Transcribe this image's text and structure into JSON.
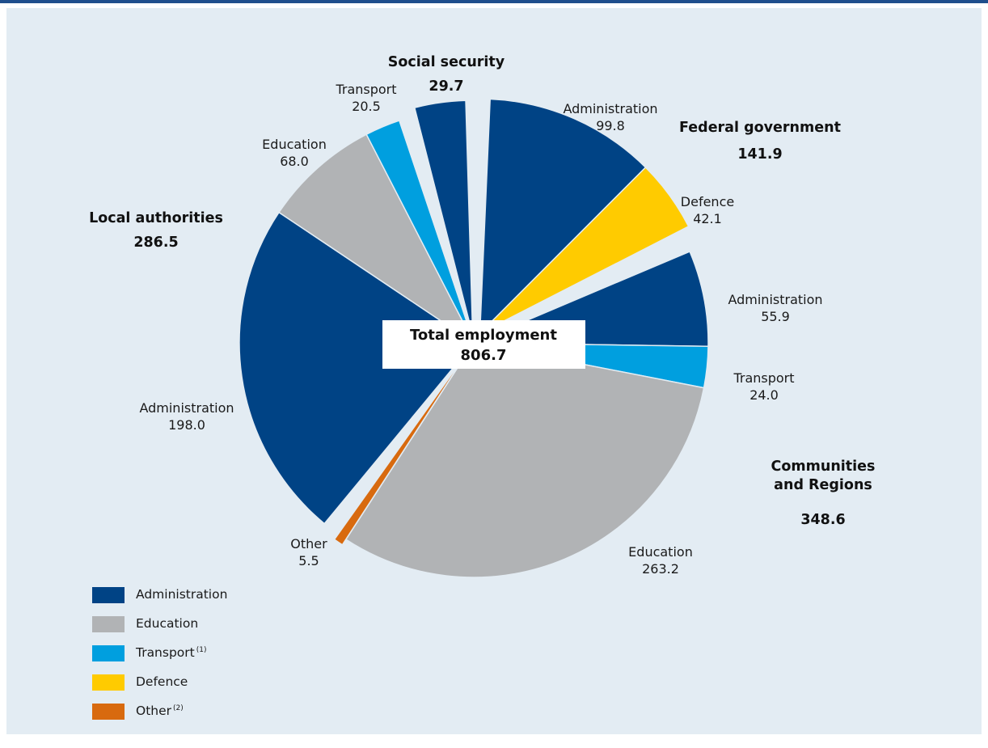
{
  "colors": {
    "background": "#e3ecf3",
    "top_rule": "#1f4e8c",
    "Administration": "#004385",
    "Education": "#b1b3b5",
    "Transport": "#009fdf",
    "Defence": "#ffcb00",
    "Other": "#d86a0f",
    "center_box": "#ffffff"
  },
  "chart_data": {
    "type": "pie",
    "total": {
      "label": "Total employment",
      "value": "806.7"
    },
    "groups": [
      {
        "name": "Federal government",
        "value": "141.9",
        "slices": [
          {
            "category": "Administration",
            "value": 99.8,
            "label": "Administration",
            "value_text": "99.8"
          },
          {
            "category": "Defence",
            "value": 42.1,
            "label": "Defence",
            "value_text": "42.1"
          }
        ]
      },
      {
        "name_lines": [
          "Communities",
          "and Regions"
        ],
        "value": "348.6",
        "slices": [
          {
            "category": "Administration",
            "value": 55.9,
            "label": "Administration",
            "value_text": "55.9"
          },
          {
            "category": "Transport",
            "value": 24.0,
            "label": "Transport",
            "value_text": "24.0"
          },
          {
            "category": "Education",
            "value": 263.2,
            "label": "Education",
            "value_text": "263.2"
          },
          {
            "category": "Other",
            "value": 5.5,
            "label": "Other",
            "value_text": "5.5"
          }
        ]
      },
      {
        "name": "Local authorities",
        "value": "286.5",
        "slices": [
          {
            "category": "Administration",
            "value": 198.0,
            "label": "Administration",
            "value_text": "198.0"
          },
          {
            "category": "Education",
            "value": 68.0,
            "label": "Education",
            "value_text": "68.0"
          },
          {
            "category": "Transport",
            "value": 20.5,
            "label": "Transport",
            "value_text": "20.5"
          }
        ]
      },
      {
        "name": "Social security",
        "value": "29.7",
        "slices": [
          {
            "category": "Administration",
            "value": 29.7,
            "label": "",
            "value_text": ""
          }
        ]
      }
    ],
    "legend": [
      {
        "category": "Administration",
        "label": "Administration",
        "note": ""
      },
      {
        "category": "Education",
        "label": "Education",
        "note": ""
      },
      {
        "category": "Transport",
        "label": "Transport",
        "note": "(1)"
      },
      {
        "category": "Defence",
        "label": "Defence",
        "note": ""
      },
      {
        "category": "Other",
        "label": "Other",
        "note": "(2)"
      }
    ]
  }
}
